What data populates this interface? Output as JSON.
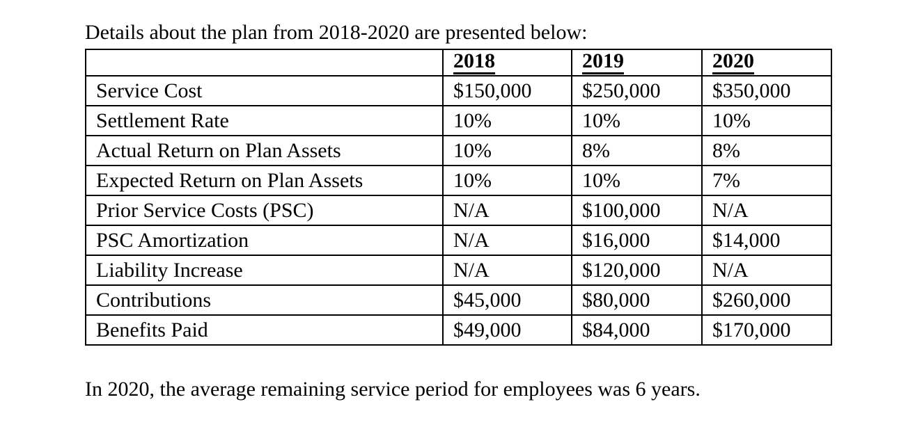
{
  "page": {
    "title": "Details about the plan from 2018-2020 are presented below:",
    "footnote": "In 2020, the average remaining service period for employees was 6 years."
  },
  "table": {
    "columns": [
      "",
      "2018",
      "2019",
      "2020"
    ],
    "rows": [
      {
        "label": "Service Cost",
        "values": [
          "$150,000",
          "$250,000",
          "$350,000"
        ]
      },
      {
        "label": "Settlement Rate",
        "values": [
          "10%",
          "10%",
          "10%"
        ]
      },
      {
        "label": "Actual Return on Plan Assets",
        "values": [
          "10%",
          "8%",
          "8%"
        ]
      },
      {
        "label": "Expected Return on Plan Assets",
        "values": [
          "10%",
          "10%",
          "7%"
        ]
      },
      {
        "label": "Prior Service Costs (PSC)",
        "values": [
          "N/A",
          "$100,000",
          "N/A"
        ]
      },
      {
        "label": "PSC Amortization",
        "values": [
          "N/A",
          "$16,000",
          "$14,000"
        ]
      },
      {
        "label": "Liability Increase",
        "values": [
          "N/A",
          "$120,000",
          "N/A"
        ]
      },
      {
        "label": "Contributions",
        "values": [
          "$45,000",
          "$80,000",
          "$260,000"
        ]
      },
      {
        "label": "Benefits Paid",
        "values": [
          "$49,000",
          "$84,000",
          "$170,000"
        ]
      }
    ]
  }
}
